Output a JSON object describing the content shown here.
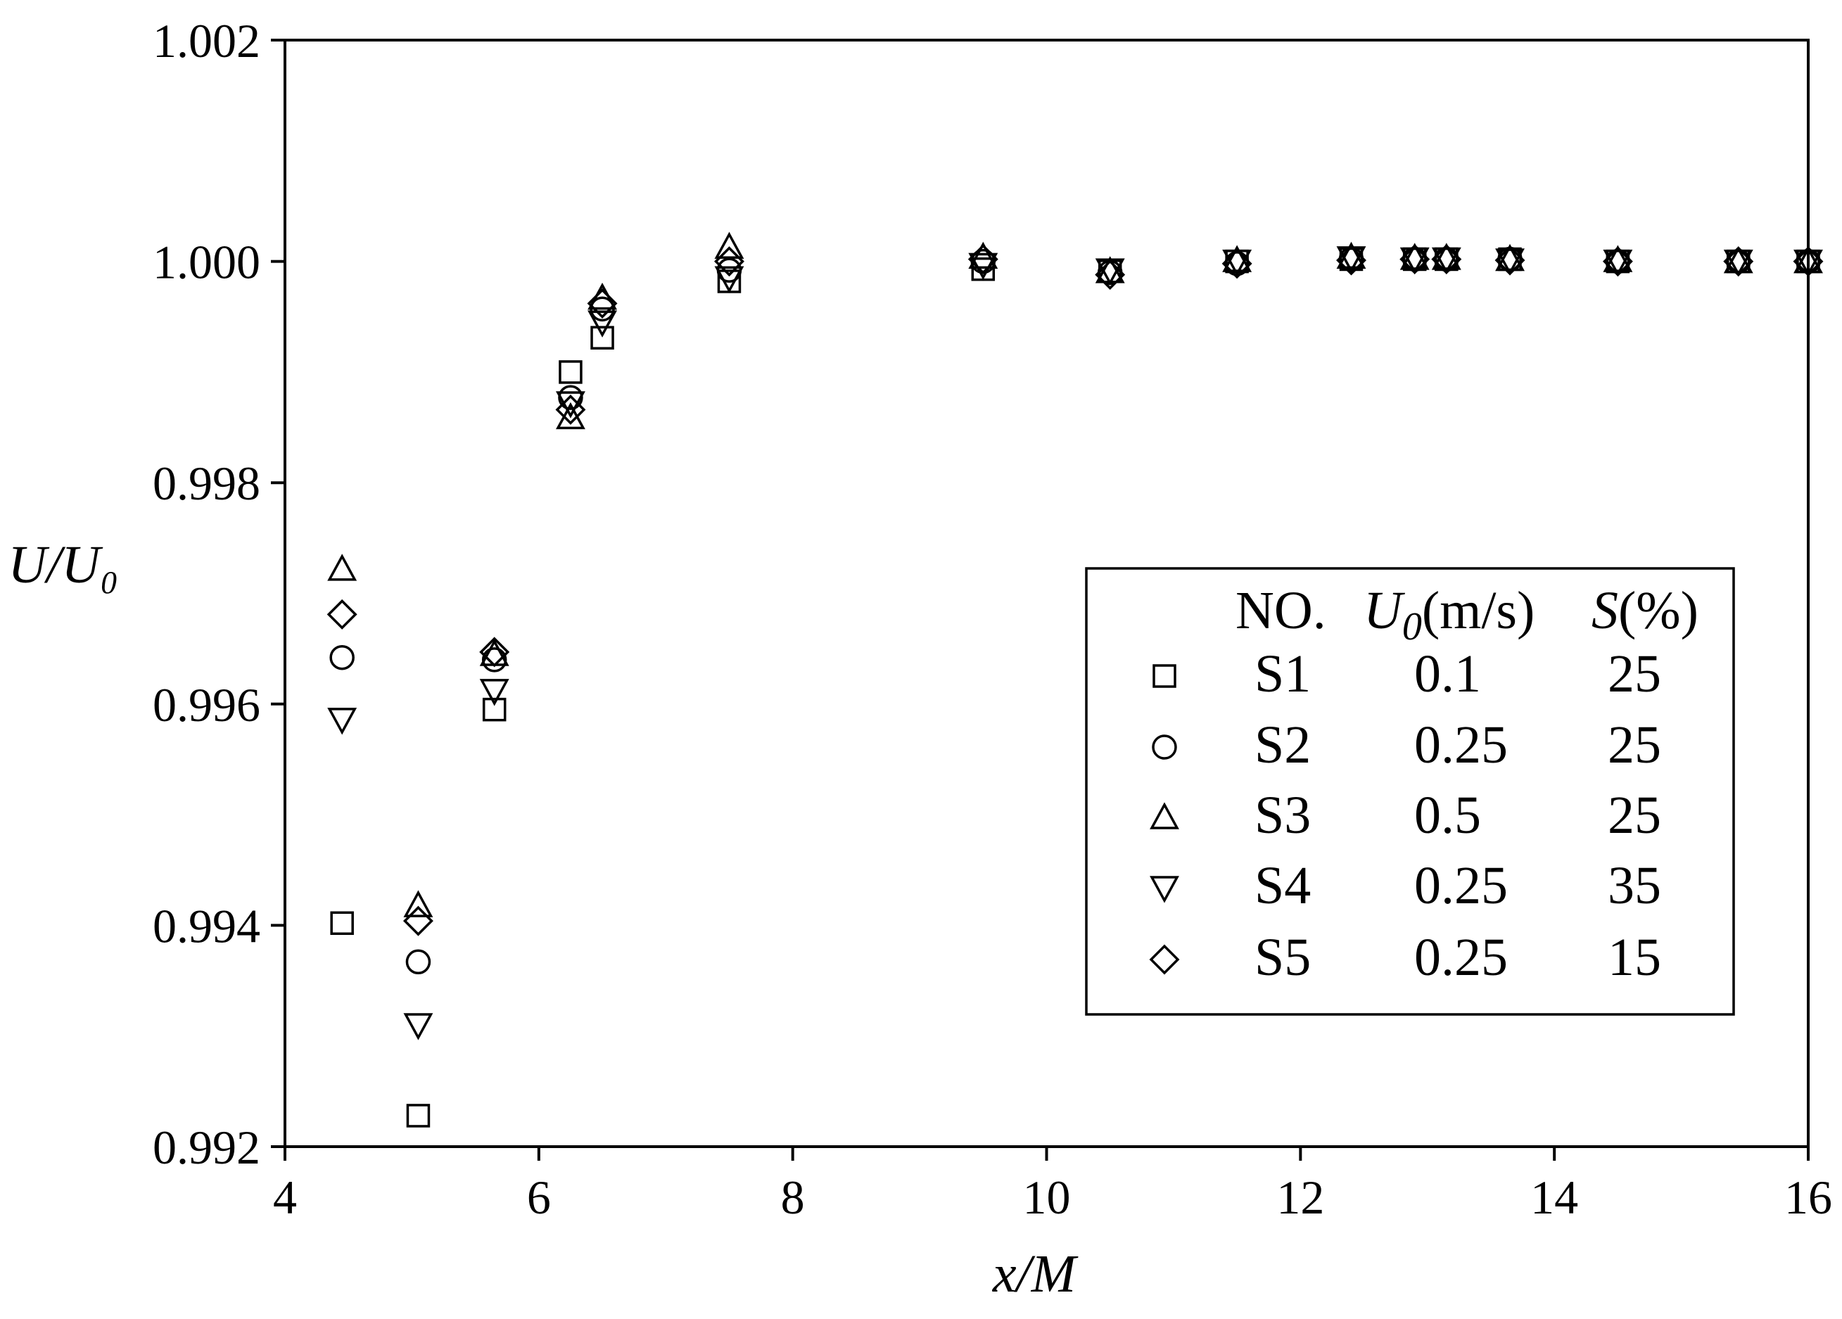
{
  "chart_data": {
    "type": "scatter",
    "xlabel": "x/M",
    "ylabel": "U/U₀",
    "xlim": [
      4,
      16
    ],
    "ylim": [
      0.992,
      1.002
    ],
    "xticks": [
      "4",
      "6",
      "8",
      "10",
      "12",
      "14",
      "16"
    ],
    "yticks": [
      "0.992",
      "0.994",
      "0.996",
      "0.998",
      "1.000",
      "1.002"
    ],
    "grid": false,
    "legend_placement": "center-right",
    "legend": {
      "headers": {
        "no": "NO.",
        "u0": "U",
        "u0_sub": "0",
        "u0_unit": "(m/s)",
        "s": "S",
        "s_unit": "(%)"
      },
      "rows": [
        {
          "no": "S1",
          "u0": "0.1",
          "s": "25"
        },
        {
          "no": "S2",
          "u0": "0.25",
          "s": "25"
        },
        {
          "no": "S3",
          "u0": "0.5",
          "s": "25"
        },
        {
          "no": "S4",
          "u0": "0.25",
          "s": "35"
        },
        {
          "no": "S5",
          "u0": "0.25",
          "s": "15"
        }
      ]
    },
    "series": [
      {
        "name": "S1",
        "marker": "square",
        "x": [
          4.45,
          5.05,
          5.65,
          6.25,
          6.5,
          7.5,
          9.5,
          10.5,
          11.5,
          12.4,
          12.9,
          13.15,
          13.65,
          14.5,
          15.45,
          16.0
        ],
        "y": [
          0.99402,
          0.99228,
          0.99595,
          0.999,
          0.99931,
          0.99982,
          0.99993,
          0.99991,
          1.0,
          1.00002,
          1.00002,
          1.00002,
          1.00002,
          1.0,
          1.0,
          1.0
        ]
      },
      {
        "name": "S2",
        "marker": "circle",
        "x": [
          4.45,
          5.05,
          5.65,
          6.25,
          6.5,
          7.5,
          9.5,
          10.5,
          11.5,
          12.4,
          12.9,
          13.15,
          13.65,
          14.5,
          15.45,
          16.0
        ],
        "y": [
          0.99642,
          0.99367,
          0.9964,
          0.99877,
          0.99957,
          0.99992,
          1.0,
          0.9999,
          0.99998,
          1.00002,
          1.00002,
          1.00002,
          1.00002,
          1.0,
          1.0,
          1.0
        ]
      },
      {
        "name": "S3",
        "marker": "triangle-up",
        "x": [
          4.45,
          5.05,
          5.65,
          6.25,
          6.5,
          7.5,
          9.5,
          10.5,
          11.5,
          12.4,
          12.9,
          13.15,
          13.65,
          14.5,
          15.45,
          16.0
        ],
        "y": [
          0.99722,
          0.99418,
          0.99645,
          0.99859,
          0.99967,
          1.00013,
          1.00004,
          0.99991,
          1.00001,
          1.00004,
          1.00003,
          1.00003,
          1.00002,
          1.00001,
          1.0,
          1.0
        ]
      },
      {
        "name": "S4",
        "marker": "triangle-down",
        "x": [
          4.45,
          5.05,
          5.65,
          6.25,
          6.5,
          7.5,
          9.5,
          10.5,
          11.5,
          12.4,
          12.9,
          13.15,
          13.65,
          14.5,
          15.45,
          16.0
        ],
        "y": [
          0.99586,
          0.9931,
          0.99612,
          0.99872,
          0.99945,
          0.99985,
          0.99997,
          0.99992,
          1.0,
          1.00003,
          1.00002,
          1.00002,
          1.00001,
          1.0,
          1.0,
          1.0
        ]
      },
      {
        "name": "S5",
        "marker": "diamond",
        "x": [
          4.45,
          5.05,
          5.65,
          6.25,
          6.5,
          7.5,
          9.5,
          10.5,
          11.5,
          12.4,
          12.9,
          13.15,
          13.65,
          14.5,
          15.45,
          16.0
        ],
        "y": [
          0.99681,
          0.99404,
          0.99647,
          0.99866,
          0.99962,
          1.0,
          1.00002,
          0.99988,
          0.99998,
          1.00001,
          1.00002,
          1.00002,
          1.00001,
          1.0,
          1.0,
          1.0
        ]
      }
    ]
  }
}
